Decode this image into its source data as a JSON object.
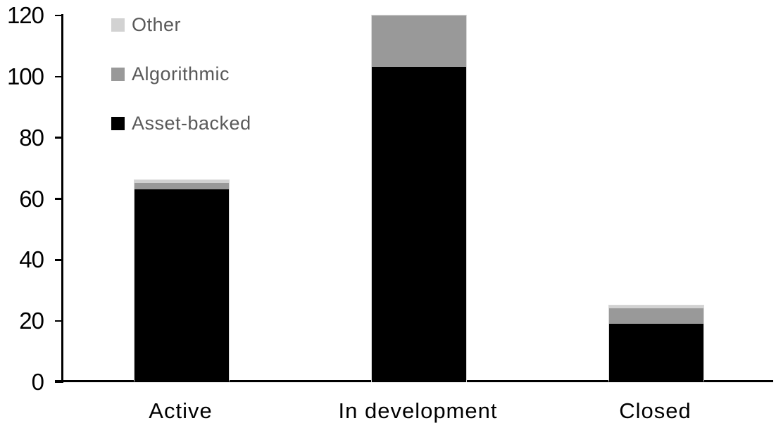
{
  "chart_data": {
    "type": "bar",
    "stacked": true,
    "title": "",
    "xlabel": "",
    "ylabel": "",
    "categories": [
      "Active",
      "In development",
      "Closed"
    ],
    "series": [
      {
        "name": "Asset-backed",
        "color": "#000000",
        "values": [
          63,
          103,
          19
        ]
      },
      {
        "name": "Algorithmic",
        "color": "#999999",
        "values": [
          2,
          17,
          5
        ]
      },
      {
        "name": "Other",
        "color": "#d2d2d2",
        "values": [
          1,
          0,
          1
        ]
      }
    ],
    "totals": [
      66,
      120,
      25
    ],
    "ylim": [
      0,
      120
    ],
    "yticks": [
      0,
      20,
      40,
      60,
      80,
      100,
      120
    ],
    "grid": false,
    "background_color": "#ffffff",
    "axis_color": "#000000",
    "bar_outline_color": "#d9d9d9",
    "legend": {
      "position": "top-left",
      "order": [
        "Other",
        "Algorithmic",
        "Asset-backed"
      ],
      "text_color": "#595959"
    }
  }
}
